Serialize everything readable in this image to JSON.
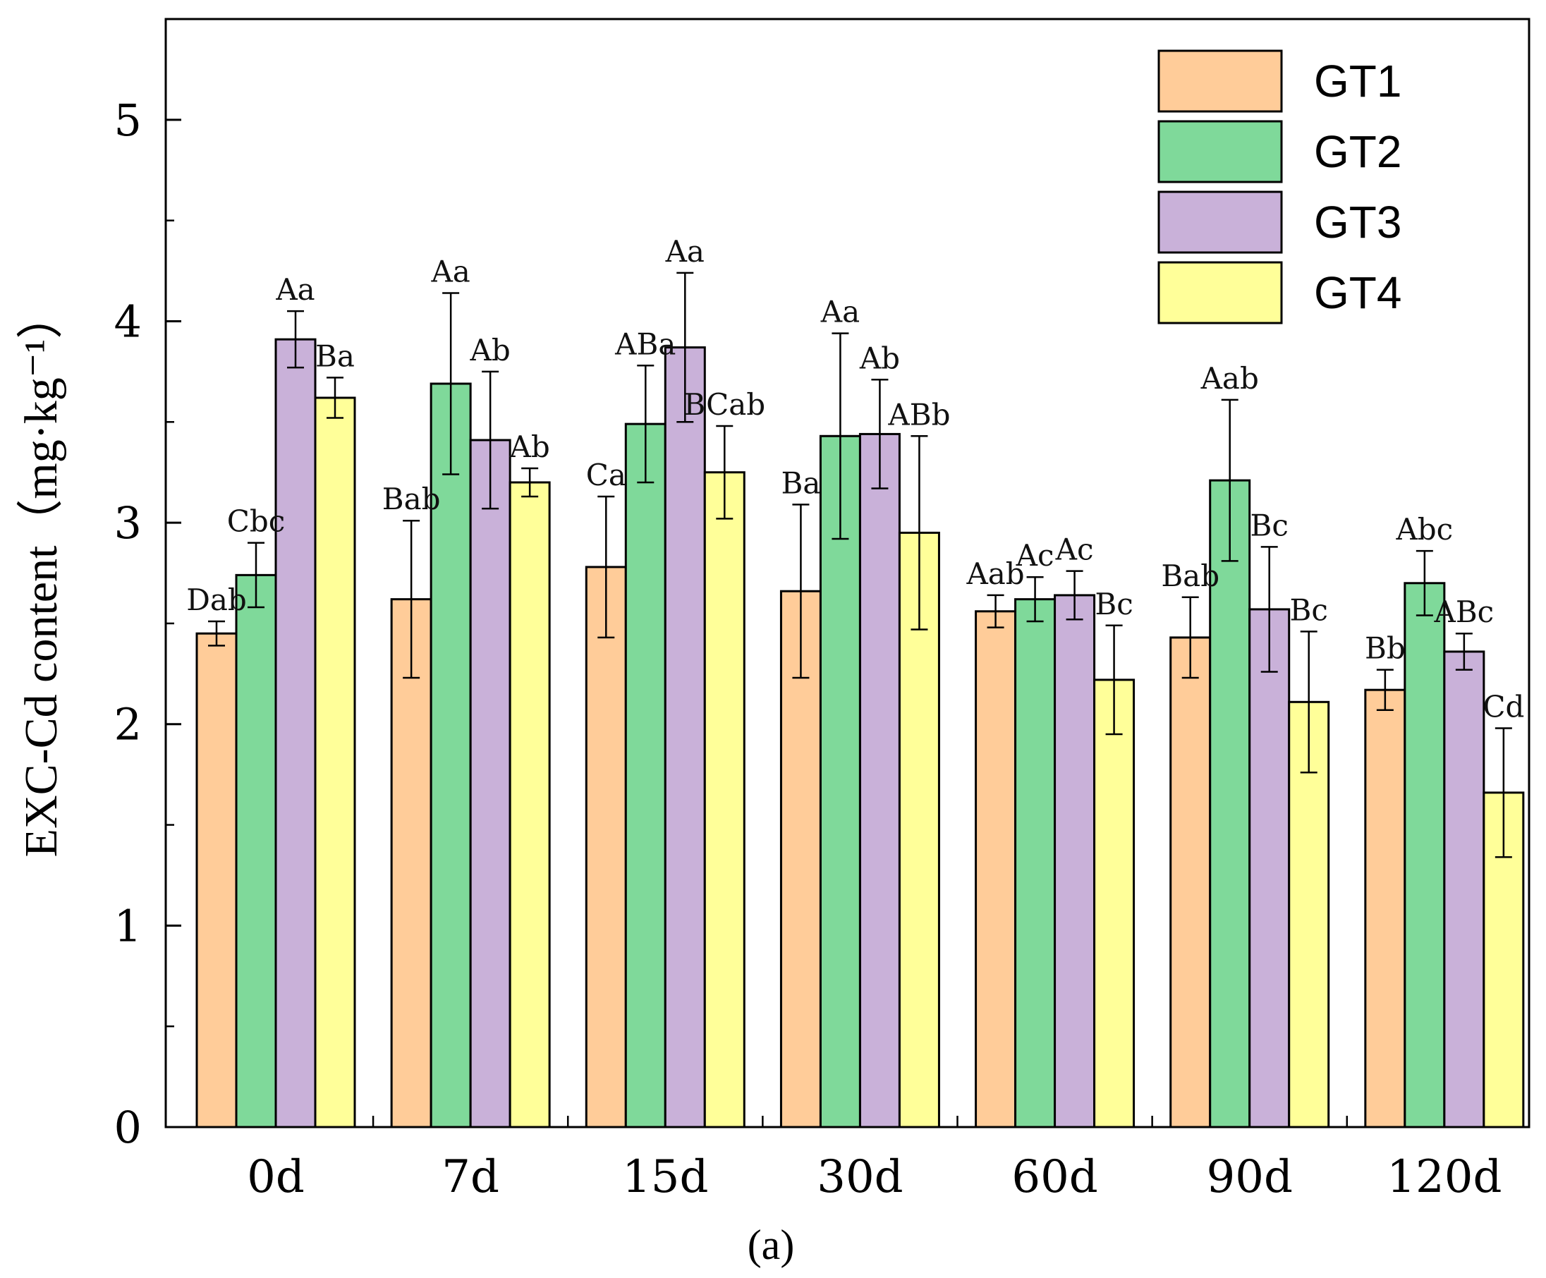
{
  "chart_data": {
    "type": "bar",
    "panel_label": "(a)",
    "ylabel": "EXC-Cd content（mg·kg⁻¹）",
    "xlabel": "",
    "ylim": [
      0,
      5.5
    ],
    "yticks": [
      0,
      1,
      2,
      3,
      4,
      5
    ],
    "categories": [
      "0d",
      "7d",
      "15d",
      "30d",
      "60d",
      "90d",
      "120d"
    ],
    "legend_position": "top-right",
    "series": [
      {
        "name": "GT1",
        "color": "#FFCC99",
        "values": [
          2.45,
          2.62,
          2.78,
          2.66,
          2.56,
          2.43,
          2.17
        ],
        "errors": [
          0.06,
          0.39,
          0.35,
          0.43,
          0.08,
          0.2,
          0.1
        ],
        "labels": [
          "Dab",
          "Bab",
          "Ca",
          "Ba",
          "Aab",
          "Bab",
          "Bb"
        ]
      },
      {
        "name": "GT2",
        "color": "#7FD99A",
        "values": [
          2.74,
          3.69,
          3.49,
          3.43,
          2.62,
          3.21,
          2.7
        ],
        "errors": [
          0.16,
          0.45,
          0.29,
          0.51,
          0.11,
          0.4,
          0.16
        ],
        "labels": [
          "Cbc",
          "Aa",
          "ABa",
          "Aa",
          "Ac",
          "Aab",
          "Abc"
        ]
      },
      {
        "name": "GT3",
        "color": "#C9B1D9",
        "values": [
          3.91,
          3.41,
          3.87,
          3.44,
          2.64,
          2.57,
          2.36
        ],
        "errors": [
          0.14,
          0.34,
          0.37,
          0.27,
          0.12,
          0.31,
          0.09
        ],
        "labels": [
          "Aa",
          "Ab",
          "Aa",
          "Ab",
          "Ac",
          "Bc",
          "ABc"
        ]
      },
      {
        "name": "GT4",
        "color": "#FFFF99",
        "values": [
          3.62,
          3.2,
          3.25,
          2.95,
          2.22,
          2.11,
          1.66
        ],
        "errors": [
          0.1,
          0.07,
          0.23,
          0.48,
          0.27,
          0.35,
          0.32
        ],
        "labels": [
          "Ba",
          "Ab",
          "BCab",
          "ABb",
          "Bc",
          "Bc",
          "Cd"
        ]
      }
    ]
  }
}
